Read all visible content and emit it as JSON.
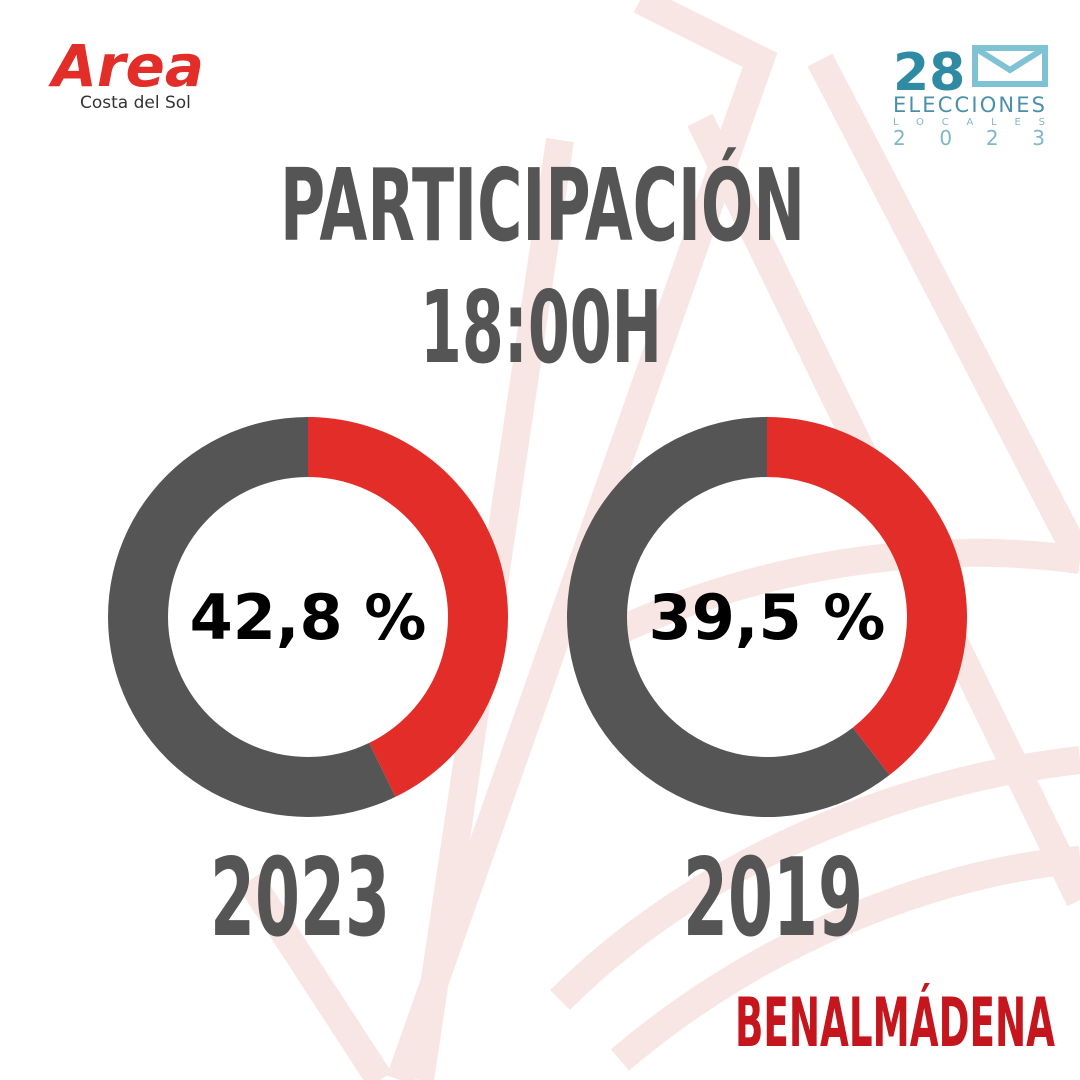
{
  "header": {
    "logo": "Area",
    "logo_subtitle": "Costa del Sol",
    "badge_number": "28",
    "badge_line1": "ELECCIONES",
    "badge_line2": "LOCALES",
    "badge_year": "2023"
  },
  "title": "PARTICIPACIÓN",
  "subtitle": "18:00H",
  "footer": "BENALMÁDENA",
  "chart_data": [
    {
      "type": "pie",
      "title": "2023",
      "values": [
        42.8,
        57.2
      ],
      "value_labels": [
        "42,8 %",
        null
      ],
      "colors": [
        "#e32d28",
        "#555555"
      ]
    },
    {
      "type": "pie",
      "title": "2019",
      "values": [
        39.5,
        60.5
      ],
      "value_labels": [
        "39,5 %",
        null
      ],
      "colors": [
        "#e32d28",
        "#555555"
      ]
    }
  ]
}
